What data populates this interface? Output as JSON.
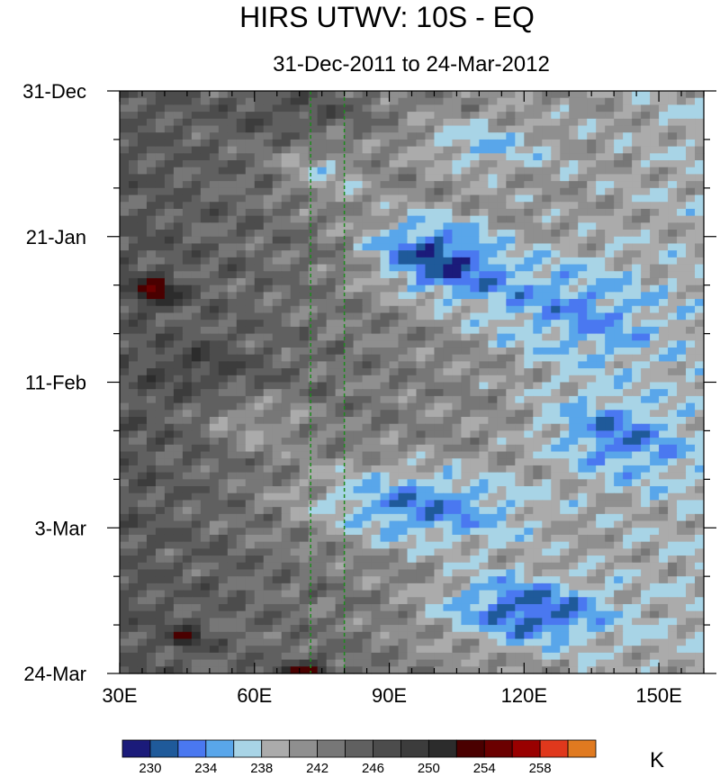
{
  "chart_data": {
    "type": "heatmap",
    "title": "HIRS UTWV: 10S - EQ",
    "subtitle": "31-Dec-2011 to 24-Mar-2012",
    "x_axis": {
      "range": [
        30,
        160
      ],
      "ticks": [
        30,
        60,
        90,
        120,
        150
      ],
      "tick_labels": [
        "30E",
        "60E",
        "90E",
        "120E",
        "150E"
      ]
    },
    "y_axis": {
      "range": [
        "31-Dec-2011",
        "24-Mar-2012"
      ],
      "ticks": [
        "31-Dec",
        "21-Jan",
        "11-Feb",
        "3-Mar",
        "24-Mar"
      ],
      "tick_day_offsets": [
        0,
        21,
        42,
        63,
        84
      ],
      "reversed": true
    },
    "reference_lines_longitude": [
      72.5,
      80
    ],
    "colorbar": {
      "unit": "K",
      "labels": [
        "230",
        "234",
        "238",
        "242",
        "246",
        "250",
        "254",
        "258"
      ],
      "levels": [
        228,
        230,
        232,
        234,
        236,
        238,
        240,
        242,
        244,
        246,
        248,
        250,
        252,
        254,
        256,
        258,
        260,
        262
      ],
      "colors": [
        "#1b1b7a",
        "#1f5a9a",
        "#4a78f0",
        "#59a6ea",
        "#a8d4e6",
        "#ababab",
        "#8f8f8f",
        "#777777",
        "#606060",
        "#4c4c4c",
        "#3c3c3c",
        "#2c2c2c",
        "#4a0000",
        "#6b0000",
        "#990000",
        "#e0381c",
        "#e07a20"
      ]
    },
    "grid": false
  }
}
